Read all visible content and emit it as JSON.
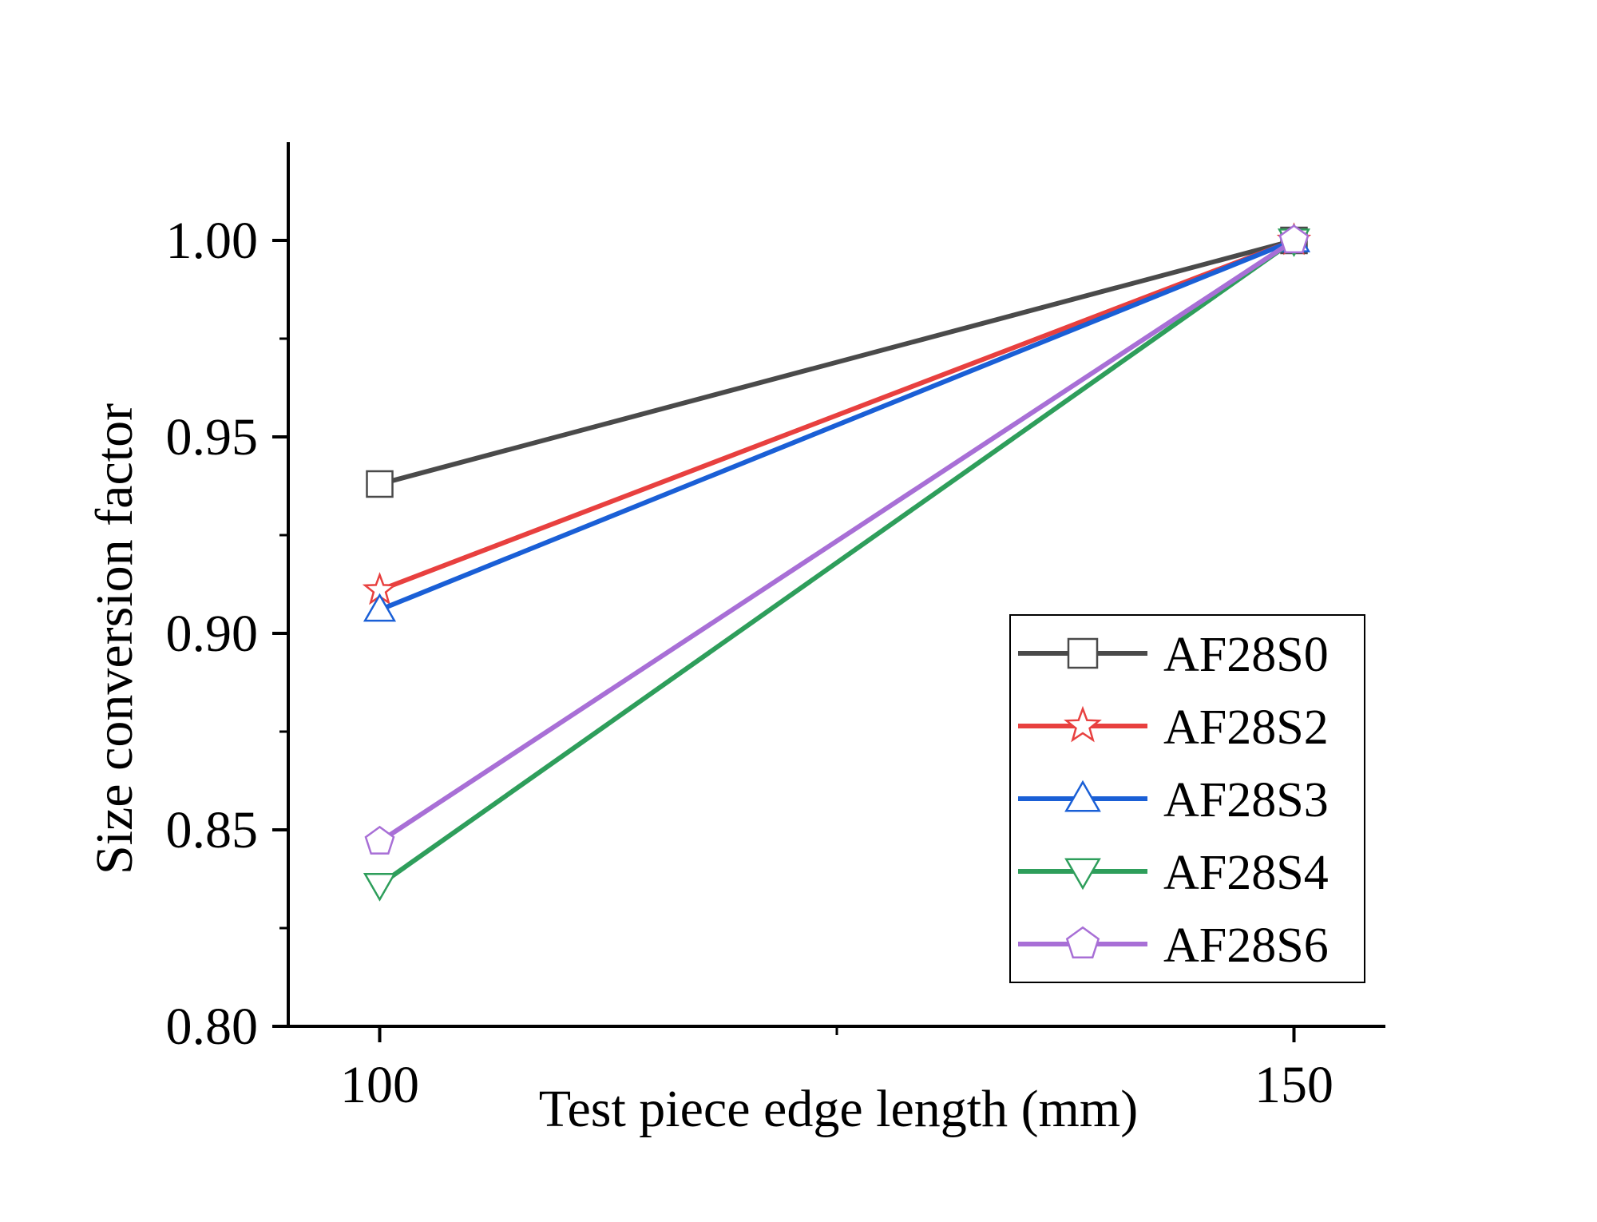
{
  "chart_data": {
    "type": "line",
    "title": "",
    "xlabel": "Test piece edge length (mm)",
    "ylabel": "Size conversion factor",
    "x": [
      100,
      150
    ],
    "x_ticks": [
      "100",
      "150"
    ],
    "xlim": [
      95,
      155
    ],
    "ylim": [
      0.8,
      1.025
    ],
    "y_ticks": [
      "0.80",
      "0.85",
      "0.90",
      "0.95",
      "1.00"
    ],
    "y_tick_values": [
      0.8,
      0.85,
      0.9,
      0.95,
      1.0
    ],
    "grid": false,
    "legend_position": "bottom-right",
    "series": [
      {
        "name": "AF28S0",
        "values": [
          0.938,
          1.0
        ],
        "color": "#4a4a4a",
        "marker": "square"
      },
      {
        "name": "AF28S2",
        "values": [
          0.911,
          1.0
        ],
        "color": "#e8403f",
        "marker": "star"
      },
      {
        "name": "AF28S3",
        "values": [
          0.906,
          1.0
        ],
        "color": "#1a5fd6",
        "marker": "triangle-up"
      },
      {
        "name": "AF28S4",
        "values": [
          0.836,
          1.0
        ],
        "color": "#2e9e5b",
        "marker": "triangle-down"
      },
      {
        "name": "AF28S6",
        "values": [
          0.847,
          1.0
        ],
        "color": "#a86fd6",
        "marker": "pentagon"
      }
    ]
  }
}
